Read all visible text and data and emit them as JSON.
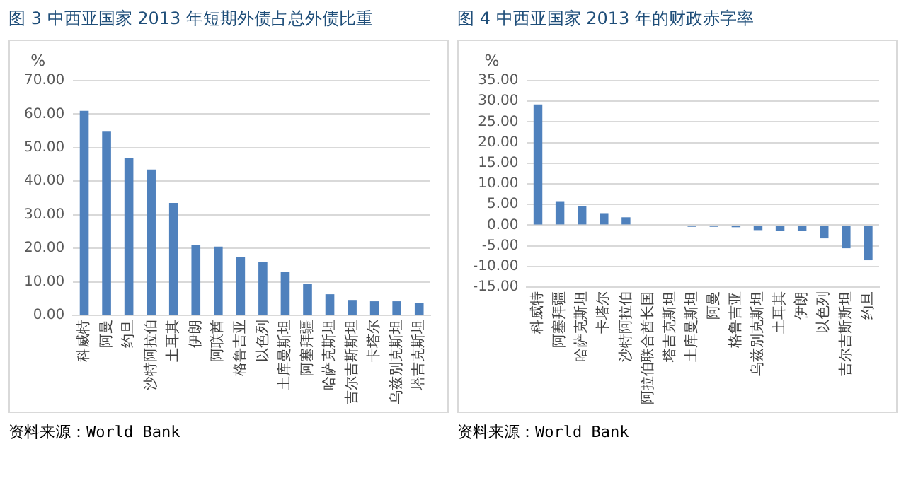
{
  "chart_data": [
    {
      "type": "bar",
      "title": "图 3 中西亚国家 2013 年短期外债占总外债比重",
      "ylabel": "%",
      "categories": [
        "科威特",
        "阿曼",
        "约旦",
        "沙特阿拉伯",
        "土耳其",
        "伊朗",
        "阿联酋",
        "格鲁吉亚",
        "以色列",
        "土库曼斯坦",
        "阿塞拜疆",
        "哈萨克斯坦",
        "吉尔吉斯斯坦",
        "卡塔尔",
        "乌兹别克斯坦",
        "塔吉克斯坦"
      ],
      "values": [
        61,
        55,
        47,
        43.5,
        33.5,
        21,
        20.5,
        17.5,
        16,
        13,
        9.3,
        6.3,
        4.6,
        4.2,
        4.2,
        3.8
      ],
      "color": "#4f81bd",
      "ylim": [
        0,
        70
      ],
      "yticks": [
        {
          "value": 0,
          "label": "0.00"
        },
        {
          "value": 10,
          "label": "10.00"
        },
        {
          "value": 20,
          "label": "20.00"
        },
        {
          "value": 30,
          "label": "30.00"
        },
        {
          "value": 40,
          "label": "40.00"
        },
        {
          "value": 50,
          "label": "50.00"
        },
        {
          "value": 60,
          "label": "60.00"
        },
        {
          "value": 70,
          "label": "70.00"
        }
      ],
      "grid": "y",
      "legend": false,
      "annotations": [
        "资料来源：World Bank"
      ]
    },
    {
      "type": "bar",
      "title": "图 4 中西亚国家 2013 年的财政赤字率",
      "ylabel": "%",
      "categories": [
        "科威特",
        "阿塞拜疆",
        "哈萨克斯坦",
        "卡塔尔",
        "沙特阿拉伯",
        "阿拉伯联合酋长国",
        "塔吉克斯坦",
        "土库曼斯坦",
        "阿曼",
        "格鲁吉亚",
        "乌兹别克斯坦",
        "土耳其",
        "伊朗",
        "以色列",
        "吉尔吉斯斯坦",
        "约旦"
      ],
      "values": [
        29.2,
        5.8,
        4.6,
        2.9,
        1.9,
        0,
        0,
        -0.4,
        -0.4,
        -0.5,
        -1.2,
        -1.3,
        -1.4,
        -3.2,
        -5.6,
        -8.5
      ],
      "color": "#4f81bd",
      "ylim": [
        -15,
        35
      ],
      "yticks": [
        {
          "value": -15,
          "label": "-15.00"
        },
        {
          "value": -10,
          "label": "-10.00"
        },
        {
          "value": -5,
          "label": "-5.00"
        },
        {
          "value": 0,
          "label": "0.00"
        },
        {
          "value": 5,
          "label": "5.00"
        },
        {
          "value": 10,
          "label": "10.00"
        },
        {
          "value": 15,
          "label": "15.00"
        },
        {
          "value": 20,
          "label": "20.00"
        },
        {
          "value": 25,
          "label": "25.00"
        },
        {
          "value": 30,
          "label": "30.00"
        },
        {
          "value": 35,
          "label": "35.00"
        }
      ],
      "grid": "y",
      "legend": false,
      "annotations": [
        "资料来源：World Bank"
      ]
    }
  ]
}
